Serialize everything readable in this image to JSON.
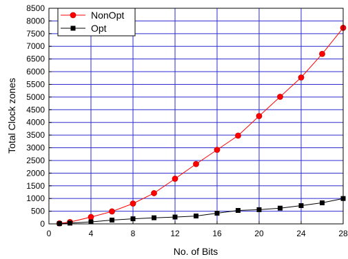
{
  "chart_data": {
    "type": "line",
    "title": "",
    "xlabel": "No. of Bits",
    "ylabel": "Total Clock zones",
    "xlim": [
      0,
      28
    ],
    "ylim": [
      0,
      8500
    ],
    "x_ticks": [
      0,
      4,
      8,
      12,
      16,
      20,
      24,
      28
    ],
    "y_ticks": [
      0,
      500,
      1000,
      1500,
      2000,
      2500,
      3000,
      3500,
      4000,
      4500,
      5000,
      5500,
      6000,
      6500,
      7000,
      7500,
      8000,
      8500
    ],
    "grid": true,
    "grid_color": "#2a2ad0",
    "legend_position": "top-left",
    "series": [
      {
        "name": "NonOpt",
        "color": "#ff0000",
        "marker": "circle",
        "x": [
          1,
          2,
          4,
          6,
          8,
          10,
          12,
          14,
          16,
          18,
          20,
          22,
          24,
          26,
          28
        ],
        "y": [
          20,
          70,
          270,
          490,
          800,
          1210,
          1780,
          2360,
          2920,
          3480,
          4250,
          5010,
          5770,
          6700,
          7730
        ]
      },
      {
        "name": "Opt",
        "color": "#000000",
        "marker": "square",
        "x": [
          1,
          2,
          4,
          6,
          8,
          10,
          12,
          14,
          16,
          18,
          20,
          22,
          24,
          26,
          28
        ],
        "y": [
          10,
          30,
          80,
          150,
          200,
          240,
          270,
          310,
          420,
          530,
          560,
          620,
          720,
          830,
          1000
        ]
      }
    ]
  }
}
